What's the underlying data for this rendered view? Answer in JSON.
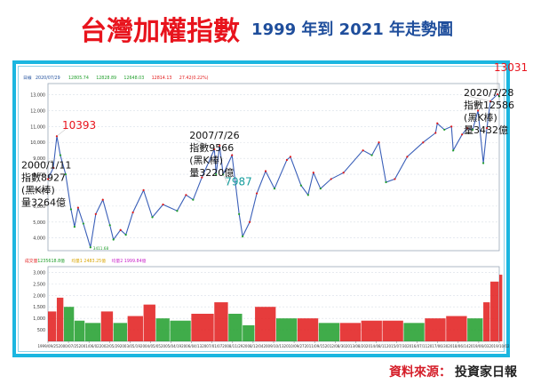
{
  "header": {
    "title": "台灣加權指數",
    "subtitle": "1999 年到 2021 年走勢圖"
  },
  "source": {
    "label": "資料來源：",
    "value": "投資家日報"
  },
  "chart_data": {
    "type": "line",
    "price_panel": {
      "legend": [
        "日線",
        "2020/07/29",
        "12805.74",
        "12828.89",
        "12648.03",
        "12814.13",
        "27.42(0.22%)"
      ],
      "y_ticks": [
        4000,
        5000,
        6000,
        7000,
        8000,
        9000,
        10000,
        11000,
        12000,
        13000
      ],
      "y_tick_labels": [
        "4,000",
        "5,000",
        "6,000",
        "7,000",
        "8,000",
        "9,000",
        "10,000",
        "11,000",
        "12,000",
        "13,000"
      ],
      "ylim": [
        3200,
        13700
      ],
      "low_label": "3411.68",
      "series": [
        {
          "x": "1999/09",
          "y": 7700
        },
        {
          "x": "1999/12",
          "y": 8400
        },
        {
          "x": "2000/02",
          "y": 10393
        },
        {
          "x": "2000/04",
          "y": 9200
        },
        {
          "x": "2000/07",
          "y": 8000
        },
        {
          "x": "2000/10",
          "y": 5800
        },
        {
          "x": "2000/12",
          "y": 4700
        },
        {
          "x": "2001/02",
          "y": 5900
        },
        {
          "x": "2001/05",
          "y": 4900
        },
        {
          "x": "2001/09",
          "y": 3411
        },
        {
          "x": "2001/12",
          "y": 5500
        },
        {
          "x": "2002/04",
          "y": 6400
        },
        {
          "x": "2002/08",
          "y": 4800
        },
        {
          "x": "2002/10",
          "y": 3900
        },
        {
          "x": "2003/02",
          "y": 4500
        },
        {
          "x": "2003/05",
          "y": 4200
        },
        {
          "x": "2003/09",
          "y": 5600
        },
        {
          "x": "2004/03",
          "y": 7000
        },
        {
          "x": "2004/08",
          "y": 5300
        },
        {
          "x": "2005/02",
          "y": 6100
        },
        {
          "x": "2005/10",
          "y": 5700
        },
        {
          "x": "2006/03",
          "y": 6700
        },
        {
          "x": "2006/07",
          "y": 6400
        },
        {
          "x": "2006/12",
          "y": 7800
        },
        {
          "x": "2007/07",
          "y": 9566
        },
        {
          "x": "2007/08",
          "y": 8000
        },
        {
          "x": "2007/10",
          "y": 9800
        },
        {
          "x": "2007/12",
          "y": 7987
        },
        {
          "x": "2008/05",
          "y": 9200
        },
        {
          "x": "2008/09",
          "y": 5500
        },
        {
          "x": "2008/11",
          "y": 4100
        },
        {
          "x": "2009/03",
          "y": 5000
        },
        {
          "x": "2009/07",
          "y": 6800
        },
        {
          "x": "2009/12",
          "y": 8200
        },
        {
          "x": "2010/05",
          "y": 7100
        },
        {
          "x": "2010/12",
          "y": 8900
        },
        {
          "x": "2011/02",
          "y": 9100
        },
        {
          "x": "2011/08",
          "y": 7300
        },
        {
          "x": "2011/12",
          "y": 6700
        },
        {
          "x": "2012/03",
          "y": 8100
        },
        {
          "x": "2012/07",
          "y": 7100
        },
        {
          "x": "2013/01",
          "y": 7700
        },
        {
          "x": "2013/08",
          "y": 8100
        },
        {
          "x": "2014/07",
          "y": 9500
        },
        {
          "x": "2014/12",
          "y": 9200
        },
        {
          "x": "2015/04",
          "y": 10000
        },
        {
          "x": "2015/08",
          "y": 7500
        },
        {
          "x": "2016/01",
          "y": 7700
        },
        {
          "x": "2016/08",
          "y": 9100
        },
        {
          "x": "2017/05",
          "y": 10000
        },
        {
          "x": "2017/12",
          "y": 10600
        },
        {
          "x": "2018/01",
          "y": 11200
        },
        {
          "x": "2018/05",
          "y": 10800
        },
        {
          "x": "2018/09",
          "y": 11000
        },
        {
          "x": "2018/10",
          "y": 9500
        },
        {
          "x": "2019/03",
          "y": 10500
        },
        {
          "x": "2019/06",
          "y": 10900
        },
        {
          "x": "2019/09",
          "y": 10800
        },
        {
          "x": "2019/12",
          "y": 12000
        },
        {
          "x": "2020/03",
          "y": 8700
        },
        {
          "x": "2020/05",
          "y": 10900
        },
        {
          "x": "2020/07",
          "y": 12586
        },
        {
          "x": "2020/11",
          "y": 13031
        },
        {
          "x": "2020/12",
          "y": 12900
        }
      ]
    },
    "volume_panel": {
      "legend": [
        "成交量",
        "1235618.8億",
        "均量1",
        "2483.25億",
        "均量2",
        "1999.84億"
      ],
      "y_ticks": [
        500,
        1000,
        1500,
        2000,
        2500,
        3000
      ],
      "y_tick_labels": [
        "500",
        "1,000",
        "1,500",
        "2,000",
        "2,500",
        "3,000"
      ],
      "ylim": [
        0,
        3250
      ],
      "series": [
        {
          "x": "1999/09",
          "y": 1300
        },
        {
          "x": "2000/02",
          "y": 1900
        },
        {
          "x": "2000/06",
          "y": 1500
        },
        {
          "x": "2000/12",
          "y": 900
        },
        {
          "x": "2001/06",
          "y": 800
        },
        {
          "x": "2002/03",
          "y": 1300
        },
        {
          "x": "2002/10",
          "y": 800
        },
        {
          "x": "2003/06",
          "y": 1100
        },
        {
          "x": "2004/03",
          "y": 1600
        },
        {
          "x": "2004/10",
          "y": 1000
        },
        {
          "x": "2005/06",
          "y": 900
        },
        {
          "x": "2006/06",
          "y": 1200
        },
        {
          "x": "2007/07",
          "y": 1700
        },
        {
          "x": "2008/03",
          "y": 1200
        },
        {
          "x": "2008/11",
          "y": 700
        },
        {
          "x": "2009/06",
          "y": 1500
        },
        {
          "x": "2010/06",
          "y": 1000
        },
        {
          "x": "2011/06",
          "y": 1000
        },
        {
          "x": "2012/06",
          "y": 800
        },
        {
          "x": "2013/06",
          "y": 800
        },
        {
          "x": "2014/06",
          "y": 900
        },
        {
          "x": "2015/06",
          "y": 900
        },
        {
          "x": "2016/06",
          "y": 800
        },
        {
          "x": "2017/06",
          "y": 1000
        },
        {
          "x": "2018/06",
          "y": 1100
        },
        {
          "x": "2019/06",
          "y": 1000
        },
        {
          "x": "2020/03",
          "y": 1700
        },
        {
          "x": "2020/07",
          "y": 2600
        },
        {
          "x": "2020/12",
          "y": 2900
        }
      ]
    },
    "x_tick_labels": [
      "1999/09/25",
      "2000/07/25",
      "2001/06/02",
      "2002/05/29",
      "2003/05/19",
      "2004/05/05",
      "2005/04/19",
      "2006/04/13",
      "2007/01/07",
      "2008/11/29",
      "2008/12/04",
      "2009/10/13",
      "2010/09/27",
      "2011/09/15",
      "2012/08/30",
      "2013/08/20",
      "2014/08/11",
      "2015/07/30",
      "2016/07/11",
      "2017/06/30",
      "2018/06/14",
      "2019/06/03",
      "2019/10/02"
    ],
    "colors": {
      "up": "#e21a1a",
      "down": "#1f9e2a",
      "neutral": "#3a5fb8"
    },
    "annotations": [
      {
        "x": "2000/02",
        "y": 10393,
        "lines": [
          "10393"
        ],
        "color": "#e8141d"
      },
      {
        "x": "2000/01",
        "y": 8927,
        "lines": [
          "2000/1/11",
          "指數8927",
          "(黑K棒)",
          "量3264億"
        ],
        "color": "#111111"
      },
      {
        "x": "2007/07",
        "y": 9566,
        "lines": [
          "2007/7/26",
          "指數9566",
          "(黑K棒)",
          "量3220億"
        ],
        "color": "#111111"
      },
      {
        "x": "2007/12",
        "y": 7987,
        "lines": [
          "7987"
        ],
        "color": "#149c9c"
      },
      {
        "x": "2020/11",
        "y": 13031,
        "lines": [
          "13031"
        ],
        "color": "#e8141d"
      },
      {
        "x": "2020/07",
        "y": 12586,
        "lines": [
          "2020/7/28",
          "指數12586",
          "(黑K棒)",
          "量3432億"
        ],
        "color": "#111111"
      }
    ]
  }
}
